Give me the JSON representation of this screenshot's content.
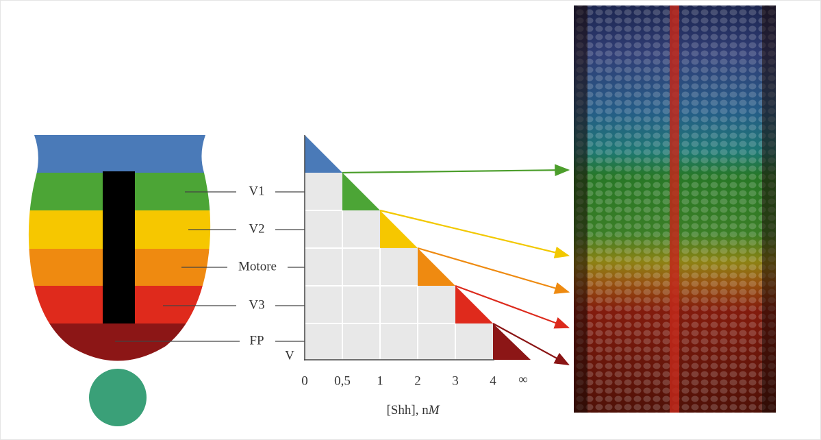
{
  "neural_tube": {
    "labels": [
      "V1",
      "V2",
      "Motore",
      "V3",
      "FP"
    ]
  },
  "graph": {
    "y_label": "V",
    "x_ticks": [
      "0",
      "0,5",
      "1",
      "2",
      "3",
      "4",
      "∞"
    ],
    "x_label": "[Shh], n",
    "x_label_unit": "M"
  }
}
